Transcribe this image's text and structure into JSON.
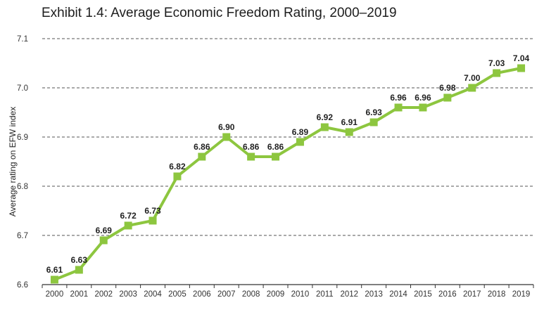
{
  "chart_data": {
    "type": "line",
    "title": "Exhibit 1.4: Average Economic Freedom Rating, 2000–2019",
    "xlabel": "",
    "ylabel": "Average rating on EFW index",
    "categories": [
      "2000",
      "2001",
      "2002",
      "2003",
      "2004",
      "2005",
      "2006",
      "2007",
      "2008",
      "2009",
      "2010",
      "2011",
      "2012",
      "2013",
      "2014",
      "2015",
      "2016",
      "2017",
      "2018",
      "2019"
    ],
    "values": [
      6.61,
      6.63,
      6.69,
      6.72,
      6.73,
      6.82,
      6.86,
      6.9,
      6.86,
      6.86,
      6.89,
      6.92,
      6.91,
      6.93,
      6.96,
      6.96,
      6.98,
      7.0,
      7.03,
      7.04
    ],
    "value_labels": [
      "6.61",
      "6.63",
      "6.69",
      "6.72",
      "6.73",
      "6.82",
      "6.86",
      "6.90",
      "6.86",
      "6.86",
      "6.89",
      "6.92",
      "6.91",
      "6.93",
      "6.96",
      "6.96",
      "6.98",
      "7.00",
      "7.03",
      "7.04"
    ],
    "ylim": [
      6.6,
      7.1
    ],
    "yticks": [
      6.6,
      6.7,
      6.8,
      6.9,
      7.0,
      7.1
    ],
    "ytick_labels": [
      "6.6",
      "6.7",
      "6.8",
      "6.9",
      "7.0",
      "7.1"
    ],
    "grid": "horizontal-dashed",
    "legend": "none",
    "line_color": "#8dc63f",
    "marker_color": "#8dc63f",
    "grid_color": "#555555"
  }
}
